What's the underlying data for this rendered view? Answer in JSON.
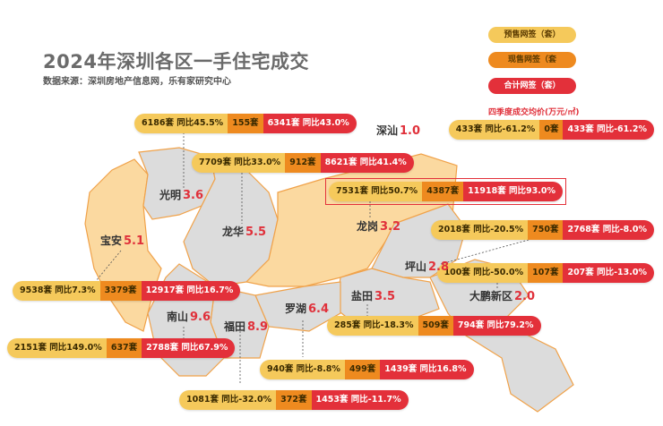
{
  "title": "2024年深圳各区一手住宅成交",
  "source": "数据来源：深圳房地产信息网，乐有家研究中心",
  "watermark": "乐有家",
  "colors": {
    "presale": "#f5c95b",
    "current": "#ee8a1f",
    "total": "#e3303a",
    "price": "#e0303a",
    "map_orange": "#fbd9a0",
    "map_gray": "#dcdcdc"
  },
  "legend": {
    "presale": "预售网签（套）",
    "current": "现售网签（套",
    "total": "合计网签（套）",
    "price": "四季度成交均价(万元/㎡)"
  },
  "districts": [
    {
      "name": "光明",
      "price": "3.6",
      "presale": "6186套 同比45.5%",
      "current": "155套",
      "total": "6341套 同比43.0%"
    },
    {
      "name": "龙华",
      "price": "5.5",
      "presale": "7709套 同比33.0%",
      "current": "912套",
      "total": "8621套 同比41.4%"
    },
    {
      "name": "深汕",
      "price": "1.0",
      "presale": "433套 同比-61.2%",
      "current": "0套",
      "total": "433套 同比-61.2%"
    },
    {
      "name": "龙岗",
      "price": "3.2",
      "presale": "7531套 同比50.7%",
      "current": "4387套",
      "total": "11918套 同比93.0%",
      "highlighted": true
    },
    {
      "name": "坪山",
      "price": "2.8",
      "presale": "2018套 同比-20.5%",
      "current": "750套",
      "total": "2768套 同比-8.0%"
    },
    {
      "name": "大鹏新区",
      "price": "2.0",
      "presale": "100套 同比-50.0%",
      "current": "107套",
      "total": "207套 同比-13.0%"
    },
    {
      "name": "宝安",
      "price": "5.1",
      "presale": "9538套 同比7.3%",
      "current": "3379套",
      "total": "12917套 同比16.7%"
    },
    {
      "name": "盐田",
      "price": "3.5",
      "presale": "285套 同比-18.3%",
      "current": "509套",
      "total": "794套 同比79.2%"
    },
    {
      "name": "南山",
      "price": "9.6",
      "presale": "2151套 同比149.0%",
      "current": "637套",
      "total": "2788套 同比67.9%"
    },
    {
      "name": "罗湖",
      "price": "6.4",
      "presale": "940套 同比-8.8%",
      "current": "499套",
      "total": "1439套 同比16.8%"
    },
    {
      "name": "福田",
      "price": "8.9",
      "presale": "1081套 同比-32.0%",
      "current": "372套",
      "total": "1453套 同比-11.7%"
    }
  ]
}
